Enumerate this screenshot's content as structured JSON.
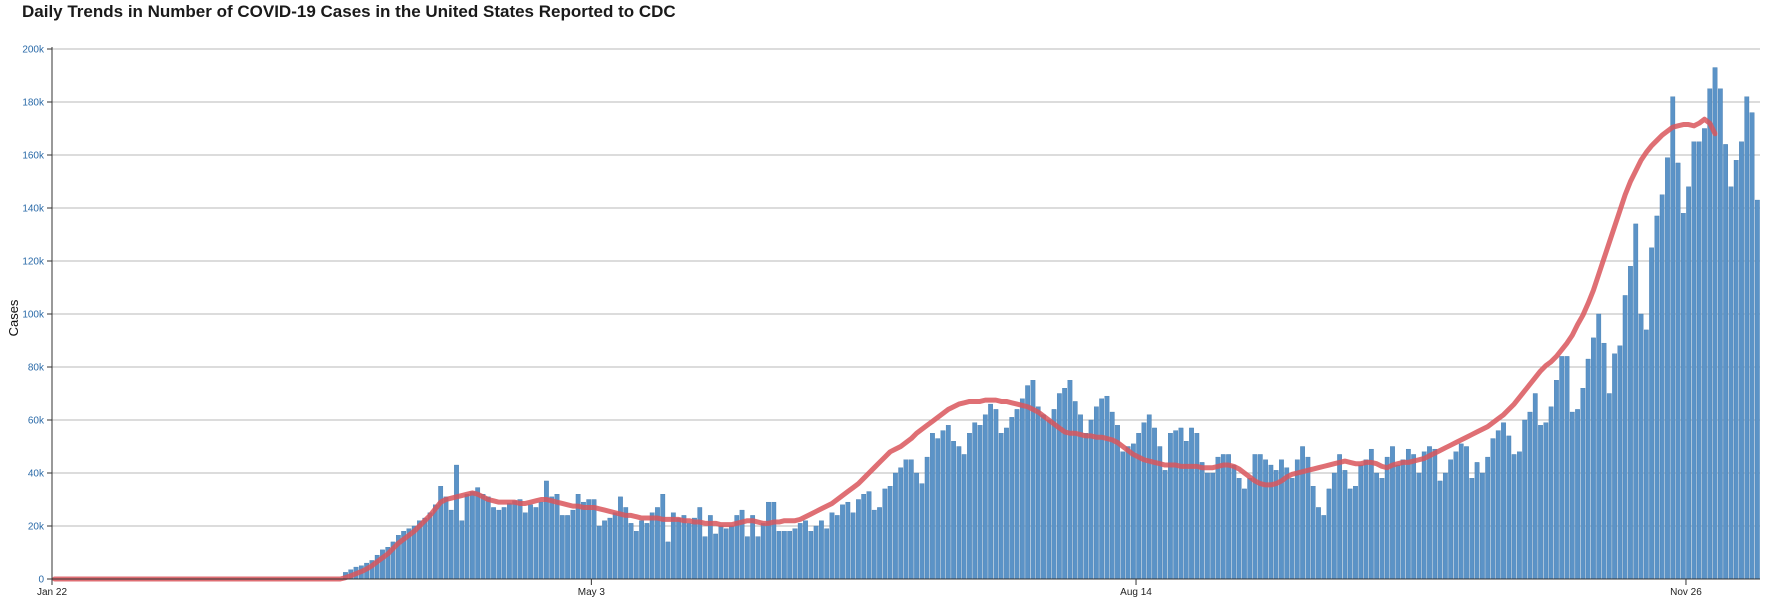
{
  "chart_data": {
    "type": "bar",
    "title": "Daily Trends in Number of COVID-19 Cases in the United States Reported to CDC",
    "ylabel": "Cases",
    "xlabel": "",
    "ylim": [
      0,
      200000
    ],
    "yticks": [
      {
        "value": 0,
        "label": "0"
      },
      {
        "value": 20000,
        "label": "20k"
      },
      {
        "value": 40000,
        "label": "40k"
      },
      {
        "value": 60000,
        "label": "60k"
      },
      {
        "value": 80000,
        "label": "80k"
      },
      {
        "value": 100000,
        "label": "100k"
      },
      {
        "value": 120000,
        "label": "120k"
      },
      {
        "value": 140000,
        "label": "140k"
      },
      {
        "value": 160000,
        "label": "160k"
      },
      {
        "value": 180000,
        "label": "180k"
      },
      {
        "value": 200000,
        "label": "200k"
      }
    ],
    "xticks": [
      {
        "index": 0,
        "label": "Jan 22"
      },
      {
        "index": 102,
        "label": "May 3"
      },
      {
        "index": 205,
        "label": "Aug 14"
      },
      {
        "index": 309,
        "label": "Nov 26"
      }
    ],
    "grid": true,
    "colors": {
      "bars": "#5b93c7",
      "bar_stroke": "#3f77ab",
      "line": "#d9565c",
      "grid": "#b8b8b8",
      "axis": "#333333"
    },
    "series": [
      {
        "type": "bar",
        "values": [
          0,
          0,
          0,
          0,
          0,
          0,
          0,
          0,
          0,
          0,
          0,
          0,
          0,
          0,
          0,
          0,
          0,
          0,
          0,
          0,
          0,
          0,
          0,
          0,
          0,
          0,
          0,
          0,
          0,
          0,
          0,
          0,
          0,
          0,
          0,
          0,
          0,
          0,
          0,
          0,
          0,
          0,
          0,
          0,
          0,
          0,
          0,
          0,
          0,
          0,
          0,
          0,
          0,
          0,
          0,
          2500,
          3500,
          4500,
          5000,
          6000,
          7000,
          9000,
          11000,
          12000,
          14000,
          16500,
          18000,
          19000,
          20000,
          22000,
          23000,
          25000,
          28000,
          35000,
          31000,
          26000,
          43000,
          22000,
          32000,
          33000,
          34500,
          32000,
          31000,
          27000,
          26000,
          27000,
          28500,
          29500,
          30000,
          25000,
          28000,
          27000,
          29000,
          37000,
          31000,
          32000,
          24000,
          24000,
          26000,
          32000,
          29000,
          30000,
          30000,
          20000,
          22000,
          23000,
          25000,
          31000,
          27000,
          21000,
          18000,
          22000,
          21000,
          25000,
          27000,
          32000,
          14000,
          25000,
          23000,
          24000,
          21000,
          23000,
          27000,
          16000,
          24000,
          17000,
          20000,
          19000,
          20000,
          24000,
          26000,
          16000,
          24000,
          16000,
          21000,
          29000,
          29000,
          18000,
          18000,
          18000,
          19000,
          21000,
          22000,
          18000,
          20000,
          22000,
          19000,
          25000,
          24000,
          28000,
          29000,
          25000,
          30000,
          32000,
          33000,
          26000,
          27000,
          34000,
          35000,
          40000,
          42000,
          45000,
          45000,
          40000,
          36000,
          46000,
          55000,
          53000,
          56000,
          58000,
          52000,
          50000,
          47000,
          55000,
          59000,
          58000,
          62000,
          66000,
          64000,
          55000,
          57000,
          61000,
          64000,
          68000,
          73000,
          75000,
          65000,
          62000,
          60000,
          64000,
          70000,
          72000,
          75000,
          67000,
          62000,
          55000,
          60000,
          65000,
          68000,
          69000,
          63000,
          58000,
          48000,
          50000,
          51000,
          55000,
          59000,
          62000,
          57000,
          50000,
          41000,
          55000,
          56000,
          57000,
          52000,
          57000,
          55000,
          44000,
          40000,
          40000,
          46000,
          47000,
          47000,
          43000,
          38000,
          34000,
          38000,
          47000,
          47000,
          45000,
          43000,
          41000,
          45000,
          42000,
          38000,
          45000,
          50000,
          46000,
          35000,
          27000,
          24000,
          34000,
          40000,
          47000,
          41000,
          34000,
          35000,
          43000,
          45000,
          49000,
          40000,
          38000,
          46000,
          50000,
          43000,
          45000,
          49000,
          47000,
          40000,
          48000,
          50000,
          49000,
          37000,
          40000,
          45000,
          48000,
          51000,
          50000,
          38000,
          44000,
          40000,
          46000,
          53000,
          56000,
          59000,
          54000,
          47000,
          48000,
          60000,
          63000,
          70000,
          58000,
          59000,
          65000,
          75000,
          84000,
          84000,
          63000,
          64000,
          72000,
          83000,
          91000,
          100000,
          89000,
          70000,
          85000,
          88000,
          107000,
          118000,
          134000,
          100000,
          94000,
          125000,
          137000,
          145000,
          159000,
          182000,
          157000,
          138000,
          148000,
          165000,
          165000,
          170000,
          185000,
          193000,
          185000,
          164000,
          148000,
          158000,
          165000,
          182000,
          176000,
          143000
        ]
      },
      {
        "type": "line",
        "values": [
          0,
          0,
          0,
          0,
          0,
          0,
          0,
          0,
          0,
          0,
          0,
          0,
          0,
          0,
          0,
          0,
          0,
          0,
          0,
          0,
          0,
          0,
          0,
          0,
          0,
          0,
          0,
          0,
          0,
          0,
          0,
          0,
          0,
          0,
          0,
          0,
          0,
          0,
          0,
          0,
          0,
          0,
          0,
          0,
          0,
          0,
          0,
          0,
          0,
          0,
          0,
          0,
          0,
          0,
          0,
          500,
          1200,
          2000,
          2800,
          3800,
          5000,
          6500,
          8000,
          9500,
          11500,
          13500,
          15000,
          16500,
          18000,
          20000,
          22000,
          24000,
          26500,
          29000,
          30000,
          30500,
          31000,
          31500,
          32000,
          32500,
          32000,
          31000,
          30000,
          29500,
          29000,
          29000,
          29000,
          29000,
          28500,
          28500,
          29000,
          29500,
          30000,
          30000,
          29500,
          29000,
          28500,
          28000,
          27500,
          27500,
          27000,
          27000,
          27000,
          26500,
          26000,
          25500,
          25000,
          24500,
          24000,
          24000,
          23500,
          23000,
          23000,
          23000,
          23000,
          22500,
          22500,
          22500,
          22500,
          22000,
          22000,
          21500,
          21500,
          21000,
          21000,
          21000,
          20500,
          20500,
          20500,
          21000,
          21500,
          22000,
          22000,
          21500,
          21000,
          21000,
          21500,
          21500,
          22000,
          22000,
          22000,
          22500,
          23500,
          24500,
          25500,
          26500,
          27500,
          28500,
          30000,
          31500,
          33000,
          34500,
          36000,
          38000,
          40000,
          42000,
          44000,
          46000,
          48000,
          49000,
          50000,
          51500,
          53000,
          55000,
          56500,
          58000,
          59500,
          61000,
          62500,
          64000,
          65000,
          66000,
          66500,
          67000,
          67000,
          67000,
          67500,
          67500,
          67500,
          67000,
          67000,
          66500,
          66000,
          65500,
          65000,
          64000,
          63000,
          61500,
          60000,
          58500,
          57000,
          55500,
          55000,
          55000,
          54500,
          54000,
          54000,
          53500,
          53500,
          53000,
          52500,
          51500,
          50000,
          48500,
          47000,
          46000,
          45000,
          44500,
          44000,
          43500,
          43000,
          43000,
          43000,
          42500,
          42500,
          42500,
          42500,
          42000,
          42000,
          42000,
          42500,
          43000,
          43000,
          42500,
          41500,
          40000,
          38500,
          37000,
          36000,
          35500,
          35500,
          36000,
          37000,
          38500,
          39500,
          40000,
          40500,
          41000,
          41500,
          42000,
          42500,
          43000,
          43500,
          44000,
          44500,
          44000,
          43500,
          43500,
          44000,
          44000,
          43500,
          42500,
          42000,
          43000,
          43500,
          44000,
          44000,
          44500,
          45000,
          45500,
          46500,
          47500,
          48500,
          49500,
          50500,
          51500,
          52500,
          53500,
          54500,
          55500,
          56500,
          57500,
          59000,
          60500,
          62000,
          64000,
          66000,
          68500,
          71000,
          73500,
          76000,
          78500,
          80500,
          82000,
          84000,
          86500,
          89000,
          92000,
          96000,
          99500,
          104000,
          109000,
          115000,
          121000,
          127000,
          133000,
          139000,
          145000,
          150000,
          154000,
          158000,
          161000,
          163500,
          165500,
          167500,
          169000,
          170500,
          171000,
          171500,
          171500,
          171000,
          172000,
          173500,
          172000,
          168000
        ]
      }
    ]
  }
}
